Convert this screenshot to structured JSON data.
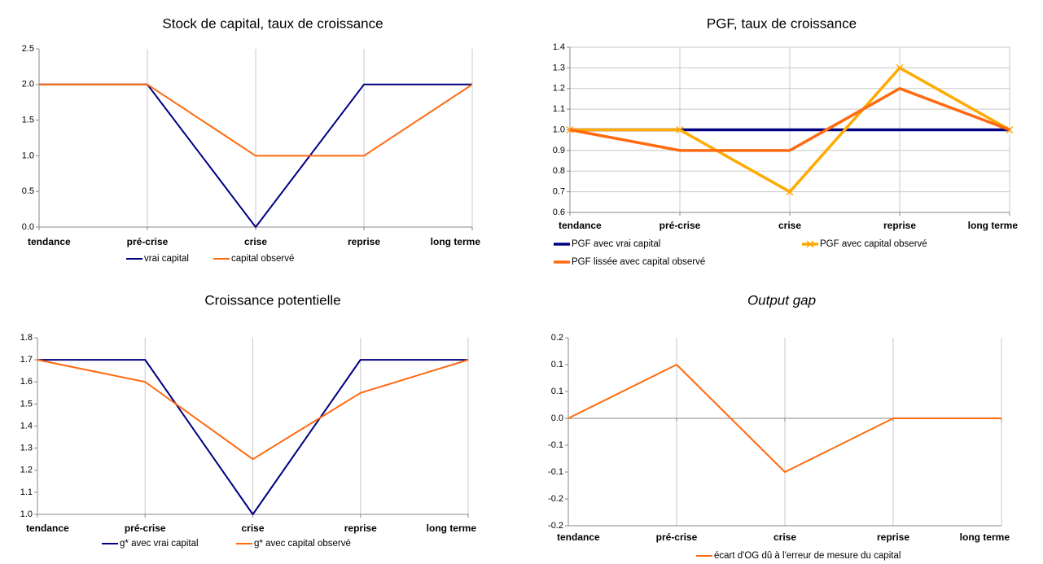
{
  "chart_data": [
    {
      "type": "line",
      "title": "Stock de capital, taux de croissance",
      "categories": [
        "tendance",
        "pré-crise",
        "crise",
        "reprise",
        "long terme"
      ],
      "series": [
        {
          "name": "vrai capital",
          "color": "#000080",
          "values": [
            2,
            2,
            0,
            2,
            2
          ]
        },
        {
          "name": "capital observé",
          "color": "#ff6a10",
          "values": [
            2,
            2,
            1,
            1,
            2
          ]
        }
      ],
      "ylim": [
        0,
        2.5
      ],
      "yticks": [
        {
          "value": 0,
          "label": "0.0"
        },
        0.5,
        {
          "value": 1,
          "label": "1.0"
        },
        1.5,
        {
          "value": 2,
          "label": "2.0"
        },
        2.5
      ],
      "vgrid": true,
      "hgrid": false
    },
    {
      "type": "line",
      "title": "PGF, taux de croissance",
      "categories": [
        "tendance",
        "pré-crise",
        "crise",
        "reprise",
        "long terme"
      ],
      "series": [
        {
          "name": "PGF avec vrai capital",
          "color": "#000080",
          "values": [
            1,
            1,
            1,
            1,
            1
          ]
        },
        {
          "name": "PGF avec capital observé",
          "color": "#ffaa00",
          "marker": "x",
          "values": [
            1,
            1,
            0.7,
            1.3,
            1
          ]
        },
        {
          "name": "PGF lissée avec capital observé",
          "color": "#ff6a10",
          "values": [
            1,
            0.9,
            0.9,
            1.2,
            1
          ]
        }
      ],
      "ylim": [
        0.6,
        1.4
      ],
      "yticks": [
        0.6,
        0.7,
        0.8,
        0.9,
        {
          "value": 1,
          "label": "1.0"
        },
        1.1,
        1.2,
        1.3,
        1.4
      ],
      "vgrid": true,
      "hgrid": true
    },
    {
      "type": "line",
      "title": "Croissance potentielle",
      "categories": [
        "tendance",
        "pré-crise",
        "crise",
        "reprise",
        "long terme"
      ],
      "series": [
        {
          "name": "g* avec vrai capital",
          "color": "#000080",
          "values": [
            1.7,
            1.7,
            1,
            1.7,
            1.7
          ]
        },
        {
          "name": "g* avec capital observé",
          "color": "#ff6a10",
          "values": [
            1.7,
            1.6,
            1.25,
            1.55,
            1.7
          ]
        }
      ],
      "ylim": [
        1,
        1.8
      ],
      "yticks": [
        {
          "value": 1,
          "label": "1.0"
        },
        1.1,
        1.2,
        1.3,
        1.4,
        1.5,
        1.6,
        1.7,
        1.8
      ],
      "vgrid": true,
      "hgrid": false
    },
    {
      "type": "line",
      "title": "Output gap",
      "title_italic": true,
      "categories": [
        "tendance",
        "pré-crise",
        "crise",
        "reprise",
        "long terme"
      ],
      "series": [
        {
          "name": "écart d'OG dû à l'erreur de mesure du capital",
          "color": "#ff6a10",
          "values": [
            0,
            0.1,
            -0.1,
            0,
            0
          ]
        }
      ],
      "ylim": [
        -0.2,
        0.15
      ],
      "yticks": [
        {
          "value": -0.2,
          "label": "-0.2"
        },
        {
          "value": -0.15,
          "label": "-0.2"
        },
        {
          "value": -0.1,
          "label": "-0.1"
        },
        {
          "value": -0.05,
          "label": "-0.1"
        },
        {
          "value": 0,
          "label": "0.0"
        },
        {
          "value": 0.05,
          "label": "0.1"
        },
        {
          "value": 0.1,
          "label": "0.1"
        },
        {
          "value": 0.15,
          "label": "0.2"
        }
      ],
      "vgrid": true,
      "hgrid": false
    }
  ]
}
